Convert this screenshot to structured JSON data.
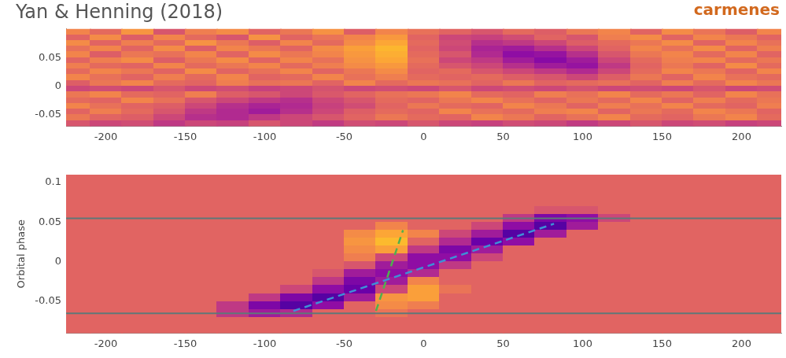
{
  "chart_data": [
    {
      "type": "heatmap",
      "title": "Yan & Henning (2018)",
      "annotation": "carmenes",
      "grid": false,
      "xlim": [
        -225,
        225
      ],
      "xticks": [
        -200,
        -150,
        -100,
        -50,
        0,
        50,
        100,
        150,
        200
      ],
      "ylim": [
        -0.07,
        0.1
      ],
      "yticks": [
        -0.05,
        0,
        0.05
      ],
      "heatmap": {
        "zlim": [
          0,
          1
        ],
        "x": [
          -220,
          -200,
          -180,
          -160,
          -140,
          -120,
          -100,
          -80,
          -60,
          -40,
          -20,
          0,
          20,
          40,
          60,
          80,
          100,
          120,
          140,
          160,
          180,
          200,
          220
        ],
        "y": [
          0.095,
          0.085,
          0.075,
          0.065,
          0.055,
          0.045,
          0.035,
          0.025,
          0.015,
          0.005,
          -0.005,
          -0.015,
          -0.025,
          -0.035,
          -0.045,
          -0.055,
          -0.065
        ],
        "z": [
          [
            0.7,
            0.62,
            0.75,
            0.55,
            0.68,
            0.72,
            0.6,
            0.66,
            0.74,
            0.58,
            0.7,
            0.64,
            0.6,
            0.55,
            0.62,
            0.58,
            0.66,
            0.7,
            0.6,
            0.72,
            0.65,
            0.58,
            0.7
          ],
          [
            0.6,
            0.72,
            0.58,
            0.7,
            0.62,
            0.55,
            0.74,
            0.6,
            0.65,
            0.7,
            0.76,
            0.6,
            0.5,
            0.48,
            0.52,
            0.6,
            0.55,
            0.68,
            0.72,
            0.6,
            0.7,
            0.66,
            0.6
          ],
          [
            0.72,
            0.6,
            0.68,
            0.62,
            0.74,
            0.66,
            0.58,
            0.7,
            0.62,
            0.72,
            0.8,
            0.62,
            0.52,
            0.42,
            0.45,
            0.5,
            0.58,
            0.62,
            0.66,
            0.72,
            0.6,
            0.7,
            0.64
          ],
          [
            0.64,
            0.7,
            0.6,
            0.72,
            0.58,
            0.7,
            0.66,
            0.6,
            0.72,
            0.78,
            0.84,
            0.6,
            0.5,
            0.38,
            0.35,
            0.42,
            0.5,
            0.6,
            0.7,
            0.64,
            0.72,
            0.6,
            0.68
          ],
          [
            0.7,
            0.58,
            0.66,
            0.64,
            0.7,
            0.6,
            0.72,
            0.66,
            0.7,
            0.76,
            0.82,
            0.62,
            0.55,
            0.4,
            0.3,
            0.32,
            0.42,
            0.55,
            0.66,
            0.7,
            0.62,
            0.7,
            0.6
          ],
          [
            0.6,
            0.68,
            0.72,
            0.58,
            0.66,
            0.72,
            0.6,
            0.7,
            0.64,
            0.74,
            0.8,
            0.64,
            0.5,
            0.45,
            0.35,
            0.28,
            0.35,
            0.5,
            0.62,
            0.68,
            0.7,
            0.62,
            0.66
          ],
          [
            0.68,
            0.62,
            0.6,
            0.7,
            0.62,
            0.66,
            0.7,
            0.62,
            0.68,
            0.72,
            0.76,
            0.62,
            0.55,
            0.5,
            0.42,
            0.35,
            0.32,
            0.45,
            0.6,
            0.66,
            0.6,
            0.72,
            0.62
          ],
          [
            0.62,
            0.7,
            0.66,
            0.6,
            0.72,
            0.6,
            0.64,
            0.7,
            0.6,
            0.66,
            0.72,
            0.6,
            0.62,
            0.55,
            0.5,
            0.45,
            0.4,
            0.5,
            0.62,
            0.7,
            0.66,
            0.6,
            0.7
          ],
          [
            0.7,
            0.64,
            0.6,
            0.68,
            0.62,
            0.7,
            0.6,
            0.62,
            0.7,
            0.64,
            0.68,
            0.62,
            0.6,
            0.62,
            0.58,
            0.55,
            0.5,
            0.58,
            0.66,
            0.6,
            0.7,
            0.64,
            0.62
          ],
          [
            0.58,
            0.66,
            0.7,
            0.62,
            0.6,
            0.68,
            0.64,
            0.66,
            0.6,
            0.7,
            0.62,
            0.66,
            0.64,
            0.6,
            0.66,
            0.6,
            0.62,
            0.64,
            0.6,
            0.68,
            0.62,
            0.7,
            0.66
          ],
          [
            0.5,
            0.52,
            0.5,
            0.55,
            0.5,
            0.52,
            0.48,
            0.5,
            0.54,
            0.5,
            0.52,
            0.5,
            0.55,
            0.5,
            0.52,
            0.5,
            0.54,
            0.5,
            0.52,
            0.5,
            0.55,
            0.5,
            0.52
          ],
          [
            0.66,
            0.7,
            0.62,
            0.6,
            0.68,
            0.58,
            0.55,
            0.5,
            0.56,
            0.6,
            0.64,
            0.66,
            0.7,
            0.62,
            0.6,
            0.68,
            0.64,
            0.7,
            0.62,
            0.66,
            0.6,
            0.7,
            0.64
          ],
          [
            0.62,
            0.6,
            0.7,
            0.64,
            0.55,
            0.5,
            0.45,
            0.42,
            0.5,
            0.55,
            0.62,
            0.6,
            0.66,
            0.7,
            0.64,
            0.6,
            0.66,
            0.62,
            0.7,
            0.6,
            0.68,
            0.62,
            0.66
          ],
          [
            0.7,
            0.64,
            0.6,
            0.58,
            0.5,
            0.42,
            0.38,
            0.4,
            0.48,
            0.52,
            0.6,
            0.66,
            0.62,
            0.6,
            0.7,
            0.66,
            0.6,
            0.68,
            0.64,
            0.7,
            0.62,
            0.6,
            0.68
          ],
          [
            0.6,
            0.68,
            0.62,
            0.55,
            0.45,
            0.4,
            0.35,
            0.42,
            0.5,
            0.58,
            0.62,
            0.6,
            0.7,
            0.64,
            0.62,
            0.68,
            0.7,
            0.6,
            0.66,
            0.62,
            0.7,
            0.66,
            0.6
          ],
          [
            0.66,
            0.6,
            0.58,
            0.5,
            0.42,
            0.4,
            0.45,
            0.5,
            0.55,
            0.6,
            0.66,
            0.62,
            0.6,
            0.7,
            0.66,
            0.6,
            0.64,
            0.7,
            0.62,
            0.6,
            0.66,
            0.7,
            0.62
          ],
          [
            0.55,
            0.5,
            0.52,
            0.45,
            0.5,
            0.48,
            0.55,
            0.5,
            0.46,
            0.52,
            0.5,
            0.55,
            0.5,
            0.48,
            0.52,
            0.5,
            0.46,
            0.5,
            0.55,
            0.5,
            0.52,
            0.48,
            0.5
          ]
        ]
      }
    },
    {
      "type": "heatmap",
      "ylabel": "Orbital phase",
      "grid": false,
      "xlim": [
        -225,
        225
      ],
      "xticks": [
        -200,
        -150,
        -100,
        -50,
        0,
        50,
        100,
        150,
        200
      ],
      "ylim": [
        -0.09,
        0.11
      ],
      "yticks": [
        -0.05,
        0,
        0.05,
        0.1
      ],
      "heatmap": {
        "zlim": [
          0,
          1
        ],
        "x": [
          -220,
          -200,
          -180,
          -160,
          -140,
          -120,
          -100,
          -80,
          -60,
          -40,
          -20,
          0,
          20,
          40,
          60,
          80,
          100,
          120,
          140,
          160,
          180,
          200,
          220
        ],
        "y": [
          0.105,
          0.095,
          0.085,
          0.075,
          0.065,
          0.055,
          0.045,
          0.035,
          0.025,
          0.015,
          0.005,
          -0.005,
          -0.015,
          -0.025,
          -0.035,
          -0.045,
          -0.055,
          -0.065,
          -0.075,
          -0.085
        ],
        "z": [
          [
            0.6,
            0.6,
            0.6,
            0.6,
            0.6,
            0.6,
            0.6,
            0.6,
            0.6,
            0.6,
            0.6,
            0.6,
            0.6,
            0.6,
            0.6,
            0.6,
            0.6,
            0.6,
            0.6,
            0.6,
            0.6,
            0.6,
            0.6
          ],
          [
            0.6,
            0.6,
            0.6,
            0.6,
            0.6,
            0.6,
            0.6,
            0.6,
            0.6,
            0.6,
            0.6,
            0.6,
            0.6,
            0.6,
            0.6,
            0.6,
            0.6,
            0.6,
            0.6,
            0.6,
            0.6,
            0.6,
            0.6
          ],
          [
            0.6,
            0.6,
            0.6,
            0.6,
            0.6,
            0.6,
            0.6,
            0.6,
            0.6,
            0.6,
            0.6,
            0.6,
            0.6,
            0.6,
            0.6,
            0.6,
            0.6,
            0.6,
            0.6,
            0.6,
            0.6,
            0.6,
            0.6
          ],
          [
            0.6,
            0.6,
            0.6,
            0.6,
            0.6,
            0.6,
            0.6,
            0.6,
            0.6,
            0.6,
            0.6,
            0.6,
            0.6,
            0.6,
            0.6,
            0.6,
            0.6,
            0.6,
            0.6,
            0.6,
            0.6,
            0.6,
            0.6
          ],
          [
            0.6,
            0.6,
            0.6,
            0.6,
            0.6,
            0.6,
            0.6,
            0.6,
            0.6,
            0.6,
            0.6,
            0.6,
            0.6,
            0.6,
            0.6,
            0.55,
            0.55,
            0.6,
            0.6,
            0.6,
            0.6,
            0.6,
            0.6
          ],
          [
            0.6,
            0.6,
            0.6,
            0.6,
            0.6,
            0.6,
            0.6,
            0.6,
            0.6,
            0.6,
            0.6,
            0.6,
            0.6,
            0.6,
            0.45,
            0.25,
            0.3,
            0.5,
            0.6,
            0.6,
            0.6,
            0.6,
            0.6
          ],
          [
            0.6,
            0.6,
            0.6,
            0.6,
            0.6,
            0.6,
            0.6,
            0.6,
            0.6,
            0.6,
            0.7,
            0.6,
            0.6,
            0.5,
            0.3,
            0.15,
            0.35,
            0.6,
            0.6,
            0.6,
            0.6,
            0.6,
            0.6
          ],
          [
            0.6,
            0.6,
            0.6,
            0.6,
            0.6,
            0.6,
            0.6,
            0.6,
            0.6,
            0.72,
            0.8,
            0.7,
            0.5,
            0.35,
            0.15,
            0.35,
            0.6,
            0.6,
            0.6,
            0.6,
            0.6,
            0.6,
            0.6
          ],
          [
            0.6,
            0.6,
            0.6,
            0.6,
            0.6,
            0.6,
            0.6,
            0.6,
            0.6,
            0.75,
            0.85,
            0.6,
            0.4,
            0.2,
            0.3,
            0.6,
            0.6,
            0.6,
            0.6,
            0.6,
            0.6,
            0.6,
            0.6
          ],
          [
            0.6,
            0.6,
            0.6,
            0.6,
            0.6,
            0.6,
            0.6,
            0.6,
            0.6,
            0.72,
            0.78,
            0.45,
            0.25,
            0.35,
            0.6,
            0.6,
            0.6,
            0.6,
            0.6,
            0.6,
            0.6,
            0.6,
            0.6
          ],
          [
            0.6,
            0.6,
            0.6,
            0.6,
            0.6,
            0.6,
            0.6,
            0.6,
            0.6,
            0.68,
            0.5,
            0.3,
            0.3,
            0.5,
            0.6,
            0.6,
            0.6,
            0.6,
            0.6,
            0.6,
            0.6,
            0.6,
            0.6
          ],
          [
            0.6,
            0.6,
            0.6,
            0.6,
            0.6,
            0.6,
            0.6,
            0.6,
            0.6,
            0.55,
            0.35,
            0.3,
            0.45,
            0.6,
            0.6,
            0.6,
            0.6,
            0.6,
            0.6,
            0.6,
            0.6,
            0.6,
            0.6
          ],
          [
            0.6,
            0.6,
            0.6,
            0.6,
            0.6,
            0.6,
            0.6,
            0.6,
            0.55,
            0.35,
            0.3,
            0.4,
            0.6,
            0.6,
            0.6,
            0.6,
            0.6,
            0.6,
            0.6,
            0.6,
            0.6,
            0.6,
            0.6
          ],
          [
            0.6,
            0.6,
            0.6,
            0.6,
            0.6,
            0.6,
            0.6,
            0.6,
            0.45,
            0.25,
            0.35,
            0.7,
            0.6,
            0.6,
            0.6,
            0.6,
            0.6,
            0.6,
            0.6,
            0.6,
            0.6,
            0.6,
            0.6
          ],
          [
            0.6,
            0.6,
            0.6,
            0.6,
            0.6,
            0.6,
            0.6,
            0.5,
            0.3,
            0.2,
            0.5,
            0.78,
            0.65,
            0.6,
            0.6,
            0.6,
            0.6,
            0.6,
            0.6,
            0.6,
            0.6,
            0.6,
            0.6
          ],
          [
            0.6,
            0.6,
            0.6,
            0.6,
            0.6,
            0.6,
            0.45,
            0.25,
            0.15,
            0.35,
            0.75,
            0.78,
            0.6,
            0.6,
            0.6,
            0.6,
            0.6,
            0.6,
            0.6,
            0.6,
            0.6,
            0.6,
            0.6
          ],
          [
            0.6,
            0.6,
            0.6,
            0.6,
            0.6,
            0.45,
            0.25,
            0.15,
            0.3,
            0.6,
            0.72,
            0.68,
            0.6,
            0.6,
            0.6,
            0.6,
            0.6,
            0.6,
            0.6,
            0.6,
            0.6,
            0.6,
            0.6
          ],
          [
            0.6,
            0.6,
            0.6,
            0.6,
            0.6,
            0.45,
            0.35,
            0.4,
            0.6,
            0.6,
            0.65,
            0.6,
            0.6,
            0.6,
            0.6,
            0.6,
            0.6,
            0.6,
            0.6,
            0.6,
            0.6,
            0.6,
            0.6
          ],
          [
            0.6,
            0.6,
            0.6,
            0.6,
            0.6,
            0.6,
            0.6,
            0.6,
            0.6,
            0.6,
            0.6,
            0.6,
            0.6,
            0.6,
            0.6,
            0.6,
            0.6,
            0.6,
            0.6,
            0.6,
            0.6,
            0.6,
            0.6
          ],
          [
            0.6,
            0.6,
            0.6,
            0.6,
            0.6,
            0.6,
            0.6,
            0.6,
            0.6,
            0.6,
            0.6,
            0.6,
            0.6,
            0.6,
            0.6,
            0.6,
            0.6,
            0.6,
            0.6,
            0.6,
            0.6,
            0.6,
            0.6
          ]
        ]
      },
      "series": [
        {
          "color": "#5f7878",
          "line_style": "solid",
          "x": [
            -225,
            225
          ],
          "values": [
            0.055,
            0.055
          ]
        },
        {
          "color": "#5f7878",
          "line_style": "solid",
          "x": [
            -225,
            225
          ],
          "values": [
            -0.065,
            -0.065
          ]
        },
        {
          "color": "#3f8fd6",
          "line_style": "dashed",
          "x": [
            -82,
            82
          ],
          "values": [
            -0.062,
            0.048
          ]
        },
        {
          "color": "#4fb04f",
          "line_style": "dashed",
          "x": [
            -30,
            -13
          ],
          "values": [
            -0.062,
            0.04
          ]
        }
      ]
    }
  ]
}
